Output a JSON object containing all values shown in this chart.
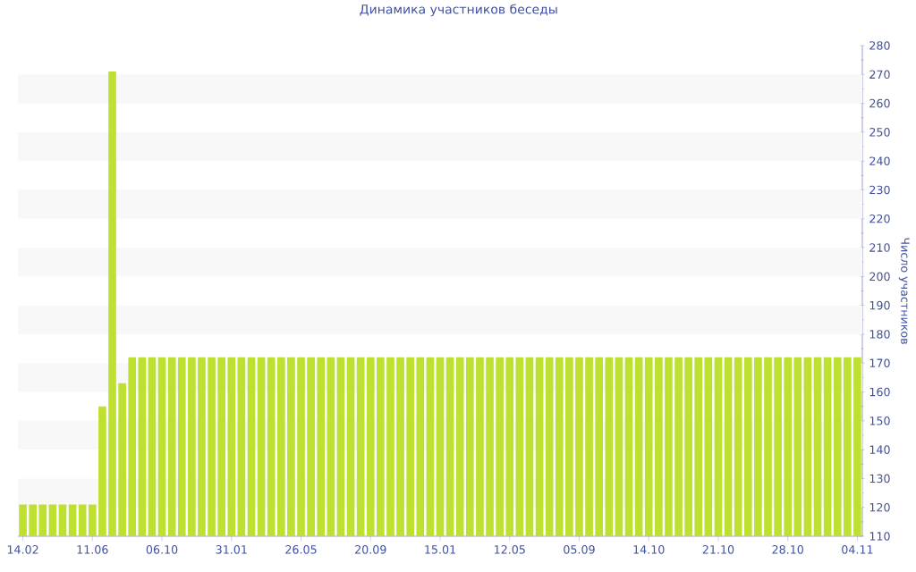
{
  "chart_data": {
    "type": "bar",
    "title": "Динамика участников беседы",
    "ylabel": "Число участников",
    "categories": [
      "14.02",
      null,
      null,
      null,
      null,
      null,
      null,
      "11.06",
      null,
      null,
      null,
      null,
      null,
      null,
      "06.10",
      null,
      null,
      null,
      null,
      null,
      null,
      "31.01",
      null,
      null,
      null,
      null,
      null,
      null,
      "26.05",
      null,
      null,
      null,
      null,
      null,
      null,
      "20.09",
      null,
      null,
      null,
      null,
      null,
      null,
      "15.01",
      null,
      null,
      null,
      null,
      null,
      null,
      "12.05",
      null,
      null,
      null,
      null,
      null,
      null,
      "05.09",
      null,
      null,
      null,
      null,
      null,
      null,
      "14.10",
      null,
      null,
      null,
      null,
      null,
      null,
      "21.10",
      null,
      null,
      null,
      null,
      null,
      null,
      "28.10",
      null,
      null,
      null,
      null,
      null,
      null,
      "04.11"
    ],
    "values": [
      121,
      121,
      121,
      121,
      121,
      121,
      121,
      121,
      155,
      271,
      163,
      172,
      172,
      172,
      172,
      172,
      172,
      172,
      172,
      172,
      172,
      172,
      172,
      172,
      172,
      172,
      172,
      172,
      172,
      172,
      172,
      172,
      172,
      172,
      172,
      172,
      172,
      172,
      172,
      172,
      172,
      172,
      172,
      172,
      172,
      172,
      172,
      172,
      172,
      172,
      172,
      172,
      172,
      172,
      172,
      172,
      172,
      172,
      172,
      172,
      172,
      172,
      172,
      172,
      172,
      172,
      172,
      172,
      172,
      172,
      172,
      172,
      172,
      172,
      172,
      172,
      172,
      172,
      172,
      172,
      172,
      172,
      172,
      172,
      172
    ],
    "color": "#bde031",
    "ylim": [
      110,
      280
    ],
    "yticks": [
      110,
      120,
      130,
      140,
      150,
      160,
      170,
      180,
      190,
      200,
      210,
      220,
      230,
      240,
      250,
      260,
      270,
      280
    ],
    "bands": [
      {
        "axis": "y",
        "from": 120,
        "to": 130,
        "color": "#f8f8f8"
      },
      {
        "axis": "y",
        "from": 140,
        "to": 150,
        "color": "#f8f8f8"
      },
      {
        "axis": "y",
        "from": 160,
        "to": 170,
        "color": "#f8f8f8"
      },
      {
        "axis": "y",
        "from": 180,
        "to": 190,
        "color": "#f8f8f8"
      },
      {
        "axis": "y",
        "from": 200,
        "to": 210,
        "color": "#f8f8f8"
      },
      {
        "axis": "y",
        "from": 220,
        "to": 230,
        "color": "#f8f8f8"
      },
      {
        "axis": "y",
        "from": 240,
        "to": 250,
        "color": "#f8f8f8"
      },
      {
        "axis": "y",
        "from": 260,
        "to": 270,
        "color": "#f8f8f8"
      }
    ]
  }
}
